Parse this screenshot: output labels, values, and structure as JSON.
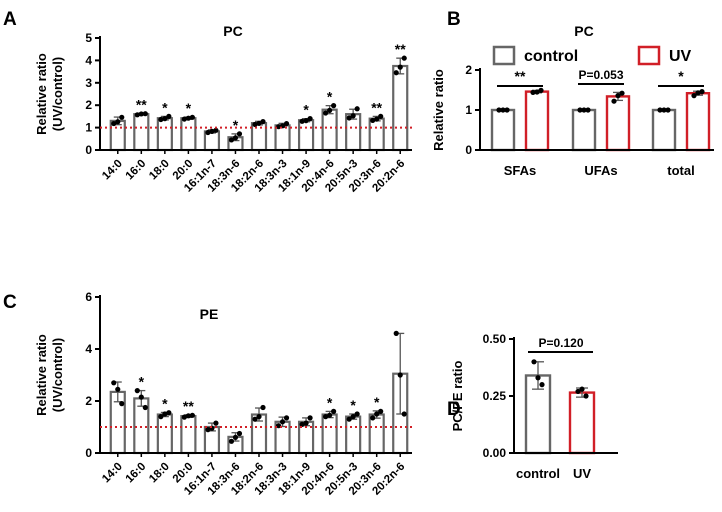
{
  "colors": {
    "control": "#666666",
    "uv": "#d11f27",
    "axis": "#000000",
    "ref_line": "#d11f27"
  },
  "chart_data": [
    {
      "id": "A",
      "panel_label": "A",
      "type": "bar",
      "title": "PC",
      "ylabel": [
        "Relative ratio",
        "(UV/control)"
      ],
      "ylim": [
        0,
        5
      ],
      "yticks": [
        "0",
        "1",
        "2",
        "3",
        "4",
        "5"
      ],
      "reference_line": 1,
      "categories": [
        "14:0",
        "16:0",
        "18:0",
        "20:0",
        "16:1n-7",
        "18:3n-6",
        "18:2n-6",
        "18:3n-3",
        "18:1n-9",
        "20:4n-6",
        "20:5n-3",
        "20:3n-6",
        "20:2n-6"
      ],
      "values": [
        1.3,
        1.6,
        1.42,
        1.42,
        0.83,
        0.57,
        1.2,
        1.1,
        1.33,
        1.8,
        1.6,
        1.4,
        3.75
      ],
      "errors": [
        0.17,
        0.04,
        0.08,
        0.05,
        0.07,
        0.15,
        0.08,
        0.09,
        0.07,
        0.18,
        0.22,
        0.1,
        0.35
      ],
      "points": [
        [
          1.18,
          1.46,
          1.26
        ],
        [
          1.57,
          1.62,
          1.61
        ],
        [
          1.36,
          1.5,
          1.4
        ],
        [
          1.38,
          1.46,
          1.42
        ],
        [
          0.78,
          0.88,
          0.83
        ],
        [
          0.45,
          0.72,
          0.54
        ],
        [
          1.14,
          1.27,
          1.19
        ],
        [
          1.04,
          1.18,
          1.08
        ],
        [
          1.28,
          1.4,
          1.31
        ],
        [
          1.65,
          1.98,
          1.77
        ],
        [
          1.43,
          1.84,
          1.53
        ],
        [
          1.32,
          1.5,
          1.38
        ],
        [
          3.45,
          4.1,
          3.7
        ]
      ],
      "significance": [
        "",
        "**",
        "*",
        "*",
        "",
        "*",
        "",
        "",
        "*",
        "*",
        "",
        "**",
        "**"
      ]
    },
    {
      "id": "B",
      "panel_label": "B",
      "type": "bar",
      "title": "PC",
      "ylabel": [
        "Relative ratio"
      ],
      "ylim": [
        0,
        2
      ],
      "yticks": [
        "0",
        "1",
        "2"
      ],
      "legend": {
        "placement": "top",
        "entries": [
          {
            "name": "control",
            "color": "#666666"
          },
          {
            "name": "UV",
            "color": "#d11f27"
          }
        ]
      },
      "categories": [
        "SFAs",
        "UFAs",
        "total"
      ],
      "series": [
        {
          "name": "control",
          "values": [
            1.0,
            1.0,
            1.0
          ],
          "errors": [
            0.01,
            0.01,
            0.01
          ],
          "points": [
            [
              1.0,
              1.0,
              1.0
            ],
            [
              1.0,
              1.0,
              1.0
            ],
            [
              1.0,
              1.0,
              1.0
            ]
          ]
        },
        {
          "name": "UV",
          "values": [
            1.46,
            1.34,
            1.42
          ],
          "errors": [
            0.03,
            0.1,
            0.05
          ],
          "points": [
            [
              1.44,
              1.49,
              1.45
            ],
            [
              1.22,
              1.42,
              1.36
            ],
            [
              1.36,
              1.46,
              1.43
            ]
          ]
        }
      ],
      "significance": [
        "**",
        "P=0.053",
        "*"
      ]
    },
    {
      "id": "C",
      "panel_label": "C",
      "type": "bar",
      "title": "PE",
      "ylabel": [
        "Relative ratio",
        "(UV/control)"
      ],
      "ylim": [
        0,
        6
      ],
      "yticks": [
        "0",
        "2",
        "4",
        "6"
      ],
      "reference_line": 1,
      "categories": [
        "14:0",
        "16:0",
        "18:0",
        "20:0",
        "16:1n-7",
        "18:3n-6",
        "18:2n-6",
        "18:3n-3",
        "18:1n-9",
        "20:4n-6",
        "20:5n-3",
        "20:3n-6",
        "20:2n-6"
      ],
      "values": [
        2.35,
        2.1,
        1.48,
        1.42,
        1.0,
        0.62,
        1.48,
        1.2,
        1.2,
        1.48,
        1.4,
        1.48,
        3.05
      ],
      "errors": [
        0.38,
        0.3,
        0.08,
        0.05,
        0.15,
        0.16,
        0.25,
        0.18,
        0.15,
        0.12,
        0.1,
        0.14,
        1.55
      ],
      "points": [
        [
          2.7,
          1.9,
          2.45
        ],
        [
          2.4,
          1.75,
          2.15
        ],
        [
          1.4,
          1.55,
          1.5
        ],
        [
          1.38,
          1.45,
          1.43
        ],
        [
          0.9,
          1.15,
          0.95
        ],
        [
          0.45,
          0.75,
          0.6
        ],
        [
          1.3,
          1.75,
          1.4
        ],
        [
          1.05,
          1.35,
          1.2
        ],
        [
          1.1,
          1.35,
          1.15
        ],
        [
          1.4,
          1.6,
          1.45
        ],
        [
          1.3,
          1.5,
          1.4
        ],
        [
          1.35,
          1.6,
          1.5
        ],
        [
          4.6,
          1.5,
          3.0
        ]
      ],
      "significance": [
        "",
        "*",
        "*",
        "**",
        "",
        "",
        "",
        "",
        "",
        "*",
        "*",
        "*",
        ""
      ]
    },
    {
      "id": "D",
      "panel_label": "D",
      "type": "bar",
      "title": "",
      "ylabel": [
        "PC/PE ratio"
      ],
      "ylim": [
        0,
        0.5
      ],
      "yticks": [
        "0.00",
        "0.25",
        "0.50"
      ],
      "categories": [
        "control",
        "UV"
      ],
      "values": [
        0.34,
        0.265
      ],
      "errors": [
        0.06,
        0.02
      ],
      "points": [
        [
          0.4,
          0.3,
          0.33
        ],
        [
          0.27,
          0.25,
          0.28
        ]
      ],
      "bar_colors": [
        "#666666",
        "#d11f27"
      ],
      "significance": [
        "P=0.120"
      ]
    }
  ]
}
